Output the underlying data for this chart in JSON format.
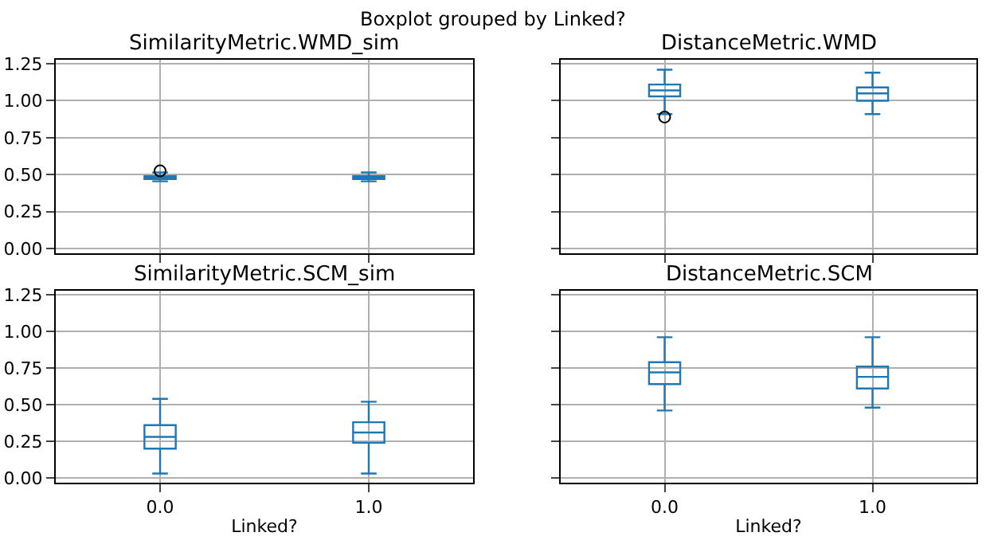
{
  "chart_data": [
    {
      "type": "box",
      "title": "SimilarityMetric.WMD_sim",
      "annotations": [
        "Boxplot grouped by Linked?"
      ],
      "categories": [
        "0.0",
        "1.0"
      ],
      "color": "#1f77b4",
      "ylim": [
        -0.03,
        1.28
      ],
      "yticks": [
        {
          "value": 0,
          "label": "0.00"
        },
        0.25,
        {
          "value": 0.5,
          "label": "0.50"
        },
        0.75,
        {
          "value": 1,
          "label": "1.00"
        },
        1.25
      ],
      "grid": true,
      "tick_labels": "y",
      "boxes": [
        {
          "low": 0.455,
          "q1": 0.47,
          "median": 0.48,
          "q3": 0.49,
          "high": 0.515,
          "outliers": [
            0.525
          ]
        },
        {
          "low": 0.455,
          "q1": 0.47,
          "median": 0.48,
          "q3": 0.49,
          "high": 0.515
        }
      ]
    },
    {
      "type": "box",
      "title": "DistanceMetric.WMD",
      "categories": [
        "0.0",
        "1.0"
      ],
      "color": "#1f77b4",
      "ylim": [
        -0.03,
        1.28
      ],
      "yticks": [
        {
          "value": 0,
          "label": null
        },
        {
          "value": 0.25,
          "label": null
        },
        {
          "value": 0.5,
          "label": null
        },
        {
          "value": 0.75,
          "label": null
        },
        {
          "value": 1,
          "label": null
        },
        {
          "value": 1.25,
          "label": null
        }
      ],
      "grid": true,
      "tick_labels": false,
      "boxes": [
        {
          "low": 0.91,
          "q1": 1.03,
          "median": 1.07,
          "q3": 1.11,
          "high": 1.21,
          "outliers": [
            0.89
          ]
        },
        {
          "low": 0.91,
          "q1": 1.0,
          "median": 1.05,
          "q3": 1.09,
          "high": 1.19
        }
      ]
    },
    {
      "type": "box",
      "title": "SimilarityMetric.SCM_sim",
      "xlabel": "Linked?",
      "categories": [
        "0.0",
        "1.0"
      ],
      "color": "#1f77b4",
      "ylim": [
        -0.03,
        1.28
      ],
      "yticks": [
        {
          "value": 0,
          "label": "0.00"
        },
        0.25,
        {
          "value": 0.5,
          "label": "0.50"
        },
        0.75,
        {
          "value": 1,
          "label": "1.00"
        },
        1.25
      ],
      "grid": true,
      "boxes": [
        {
          "low": 0.03,
          "q1": 0.2,
          "median": 0.28,
          "q3": 0.36,
          "high": 0.54
        },
        {
          "low": 0.03,
          "q1": 0.24,
          "median": 0.31,
          "q3": 0.38,
          "high": 0.52
        }
      ]
    },
    {
      "type": "box",
      "title": "DistanceMetric.SCM",
      "xlabel": "Linked?",
      "categories": [
        "0.0",
        "1.0"
      ],
      "color": "#1f77b4",
      "ylim": [
        -0.03,
        1.28
      ],
      "yticks": [
        {
          "value": 0,
          "label": null
        },
        {
          "value": 0.25,
          "label": null
        },
        {
          "value": 0.5,
          "label": null
        },
        {
          "value": 0.75,
          "label": null
        },
        {
          "value": 1,
          "label": null
        },
        {
          "value": 1.25,
          "label": null
        }
      ],
      "grid": true,
      "tick_labels": "x",
      "boxes": [
        {
          "low": 0.46,
          "q1": 0.64,
          "median": 0.72,
          "q3": 0.79,
          "high": 0.96
        },
        {
          "low": 0.48,
          "q1": 0.61,
          "median": 0.69,
          "q3": 0.76,
          "high": 0.96
        }
      ]
    }
  ]
}
